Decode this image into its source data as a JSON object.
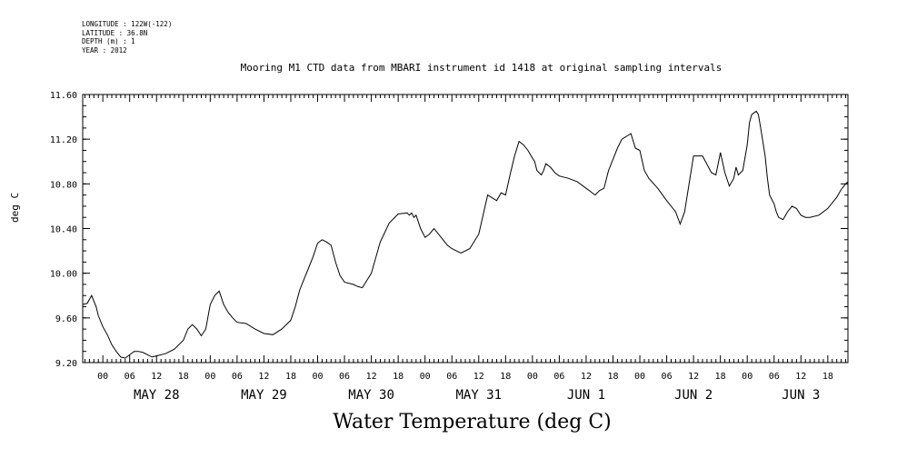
{
  "meta_lines": [
    "LONGITUDE : 122W(-122)",
    "LATITUDE : 36.8N",
    "DEPTH (m) : 1",
    "YEAR : 2012"
  ],
  "chart_data": {
    "type": "line",
    "title": "Mooring M1 CTD data from MBARI instrument id 1418 at original sampling intervals",
    "ylabel": "deg C",
    "xlabel": "Water Temperature (deg C)",
    "ylim": [
      9.2,
      11.6
    ],
    "yticks": [
      "9.20",
      "9.60",
      "10.00",
      "10.40",
      "10.80",
      "11.20",
      "11.60"
    ],
    "ytick_values": [
      9.2,
      9.6,
      10.0,
      10.4,
      10.8,
      11.2,
      11.6
    ],
    "xlim_hours": [
      -4.5,
      166.5
    ],
    "hour_ticks": [
      "00",
      "06",
      "12",
      "18"
    ],
    "days": [
      "MAY 28",
      "MAY 29",
      "MAY 30",
      "MAY 31",
      "JUN  1",
      "JUN  2",
      "JUN  3"
    ],
    "series": [
      {
        "x": [
          -4.5,
          -3.5,
          -2.5,
          -1.5,
          -1,
          0,
          1,
          2,
          3,
          4,
          5,
          6,
          7,
          8,
          9,
          10,
          11,
          12,
          14,
          16,
          18,
          19,
          20,
          21,
          22,
          23,
          24,
          25,
          26,
          27,
          28,
          29,
          30,
          32,
          34,
          36,
          38,
          40,
          42,
          43,
          44,
          45,
          46,
          47,
          48,
          49,
          50,
          51,
          52,
          53,
          54,
          56,
          57,
          58,
          60,
          62,
          64,
          66,
          68,
          68.5,
          69,
          69.5,
          70,
          71,
          72,
          73,
          74,
          75,
          76,
          77,
          78,
          80,
          82,
          84,
          86,
          88,
          89,
          90,
          91,
          92,
          93,
          94,
          95,
          96,
          96.5,
          97,
          98,
          98.5,
          99,
          100,
          101,
          102,
          104,
          106,
          108,
          109,
          110,
          111,
          112,
          113,
          114,
          115,
          116,
          118,
          119,
          120,
          121,
          122,
          124,
          126,
          128,
          129,
          130,
          132,
          134,
          136,
          137,
          138,
          139,
          140,
          141,
          141.5,
          142,
          143,
          144,
          144.5,
          145,
          146,
          146.5,
          147,
          148,
          148.5,
          149,
          150,
          150.5,
          151,
          152,
          153,
          154,
          155,
          155.5,
          156,
          157,
          158,
          160,
          162,
          164,
          165,
          166,
          166.5
        ],
        "values": [
          9.72,
          9.73,
          9.8,
          9.7,
          9.62,
          9.52,
          9.45,
          9.36,
          9.3,
          9.25,
          9.24,
          9.27,
          9.3,
          9.3,
          9.29,
          9.27,
          9.25,
          9.26,
          9.28,
          9.32,
          9.4,
          9.5,
          9.54,
          9.5,
          9.44,
          9.5,
          9.72,
          9.8,
          9.84,
          9.72,
          9.65,
          9.6,
          9.56,
          9.55,
          9.5,
          9.46,
          9.45,
          9.5,
          9.58,
          9.7,
          9.85,
          9.95,
          10.05,
          10.15,
          10.27,
          10.3,
          10.28,
          10.25,
          10.1,
          9.98,
          9.92,
          9.9,
          9.88,
          9.87,
          10.0,
          10.28,
          10.45,
          10.53,
          10.54,
          10.52,
          10.54,
          10.5,
          10.52,
          10.4,
          10.32,
          10.35,
          10.4,
          10.35,
          10.3,
          10.25,
          10.22,
          10.18,
          10.22,
          10.35,
          10.7,
          10.65,
          10.72,
          10.7,
          10.88,
          11.05,
          11.18,
          11.15,
          11.1,
          11.03,
          11.0,
          10.92,
          10.88,
          10.92,
          10.98,
          10.95,
          10.9,
          10.87,
          10.85,
          10.82,
          10.76,
          10.73,
          10.7,
          10.74,
          10.76,
          10.92,
          11.02,
          11.12,
          11.2,
          11.25,
          11.12,
          11.1,
          10.92,
          10.85,
          10.76,
          10.65,
          10.55,
          10.44,
          10.55,
          11.05,
          11.05,
          10.9,
          10.88,
          11.08,
          10.9,
          10.78,
          10.85,
          10.95,
          10.88,
          10.92,
          11.15,
          11.35,
          11.42,
          11.45,
          11.42,
          11.3,
          11.05,
          10.85,
          10.7,
          10.62,
          10.55,
          10.5,
          10.48,
          10.55,
          10.6,
          10.58,
          10.55,
          10.52,
          10.5,
          10.5,
          10.52,
          10.58,
          10.68,
          10.75,
          10.8,
          10.82
        ]
      }
    ]
  }
}
